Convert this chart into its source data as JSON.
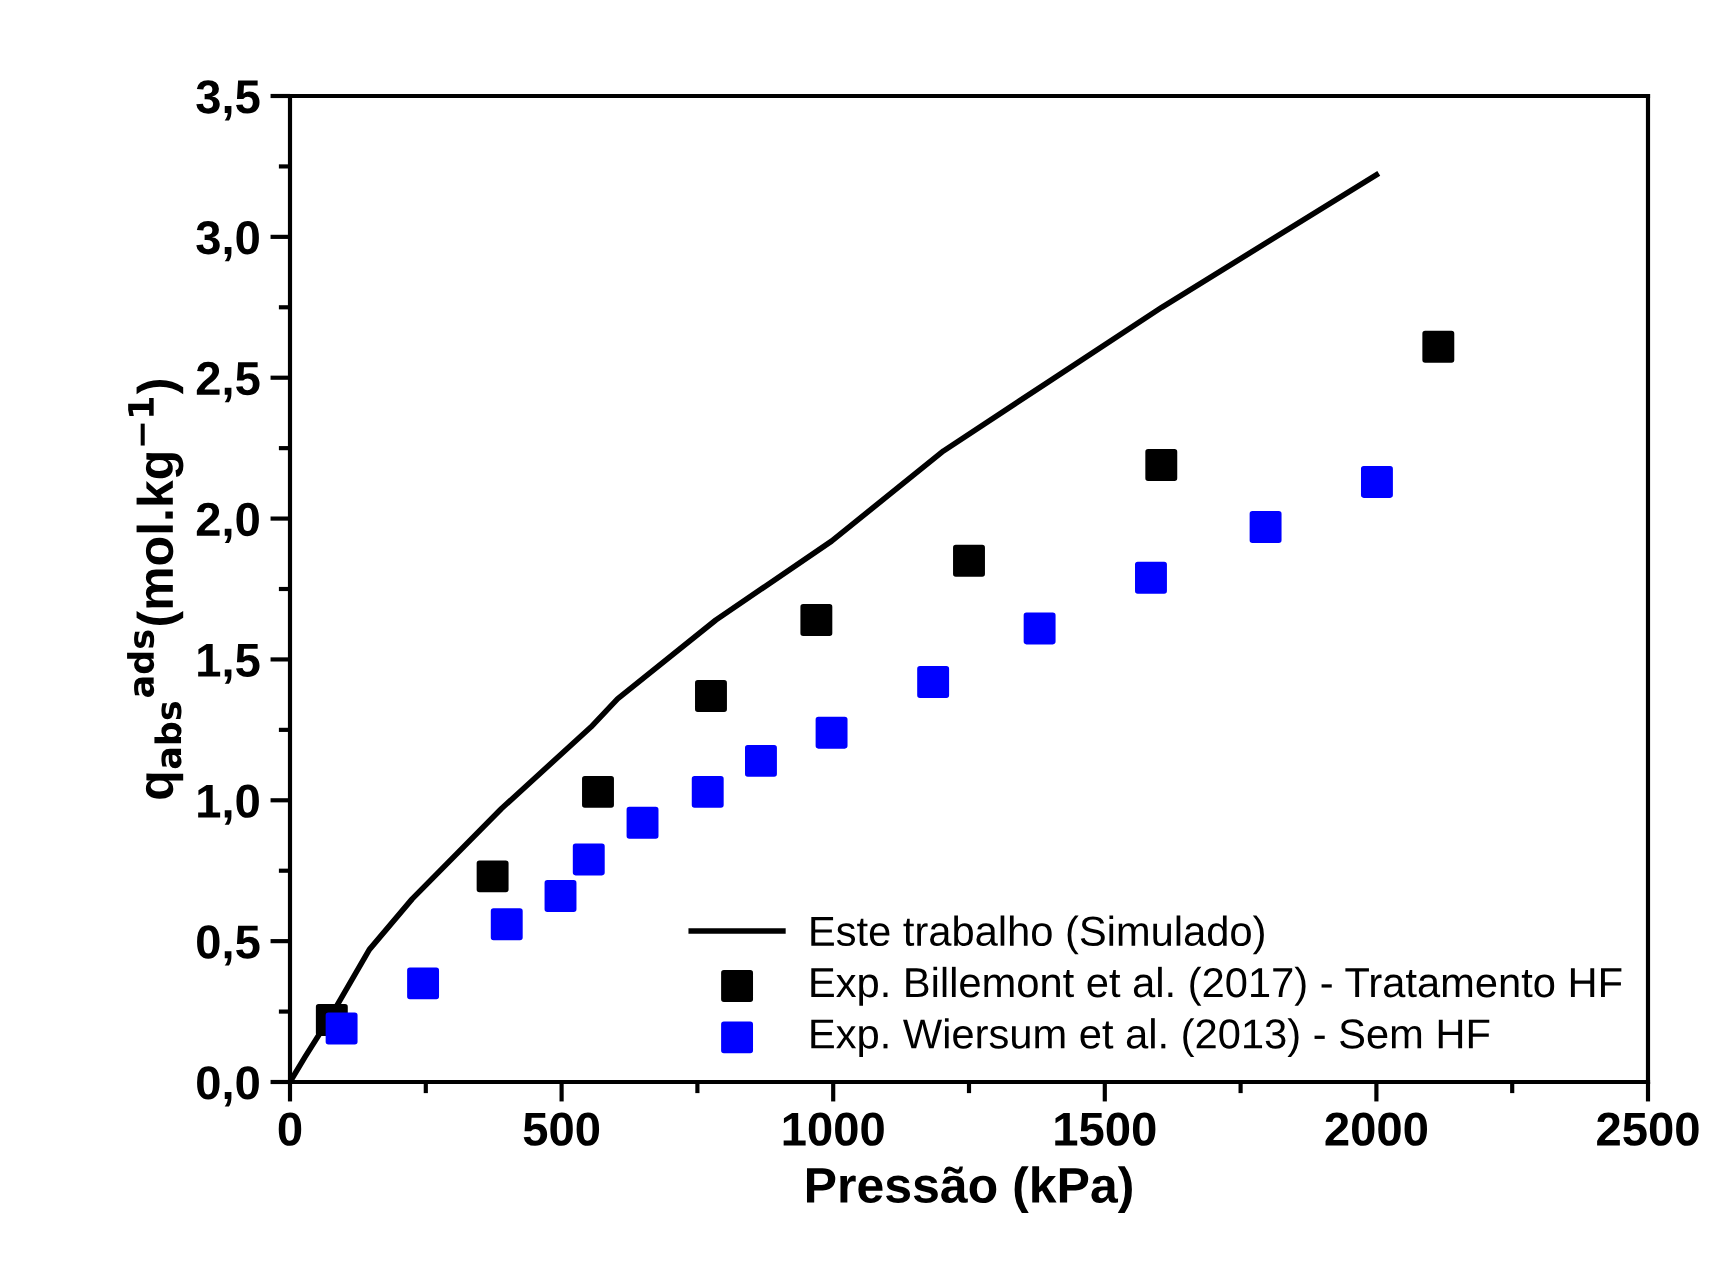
{
  "chart_data": {
    "type": "scatter",
    "xlabel": "Pressão (kPa)",
    "ylabel": "q$_{abs}$$^{ads}$(mol.kg$^{−1}$)",
    "xlim": [
      0,
      2500
    ],
    "xticks": [
      0,
      500,
      1000,
      1500,
      2000,
      2500
    ],
    "ylim": [
      0,
      3.5
    ],
    "yticks": [
      {
        "value": 0,
        "label": "0,0"
      },
      {
        "value": 0.5,
        "label": "0,5"
      },
      {
        "value": 1.0,
        "label": "1,0"
      },
      {
        "value": 1.5,
        "label": "1,5"
      },
      {
        "value": 2.0,
        "label": "2,0"
      },
      {
        "value": 2.5,
        "label": "2,5"
      },
      {
        "value": 3.0,
        "label": "3,0"
      },
      {
        "value": 3.5,
        "label": "3,5"
      }
    ],
    "grid": false,
    "legend": "bottom right",
    "series": [
      {
        "name": "Este trabalho (Simulado)",
        "type": "line",
        "color": "#000000",
        "line_style": "solid",
        "marker": "none",
        "x": [
          0,
          28,
          77,
          146,
          225,
          389,
          554,
          603,
          784,
          997,
          1203,
          1392,
          1605,
          2000
        ],
        "values": [
          0,
          0.09,
          0.24,
          0.47,
          0.65,
          0.97,
          1.26,
          1.36,
          1.64,
          1.92,
          2.24,
          2.48,
          2.75,
          3.22
        ]
      },
      {
        "name": "Exp. Billemont et al. (2017) - Tratamento HF",
        "color": "#000000",
        "marker": "square",
        "x": [
          77,
          373,
          567,
          775,
          969,
          1250,
          1604,
          2114
        ],
        "values": [
          0.22,
          0.73,
          1.03,
          1.37,
          1.64,
          1.85,
          2.19,
          2.61
        ]
      },
      {
        "name": "Exp. Wiersum et al. (2013) - Sem HF",
        "color": "#0000ff",
        "marker": "square",
        "x": [
          95,
          245,
          399,
          498,
          550,
          649,
          769,
          867,
          997,
          1184,
          1380,
          1585,
          1796,
          2001
        ],
        "values": [
          0.19,
          0.35,
          0.56,
          0.66,
          0.79,
          0.92,
          1.03,
          1.14,
          1.24,
          1.42,
          1.61,
          1.79,
          1.97,
          2.13
        ]
      }
    ]
  }
}
